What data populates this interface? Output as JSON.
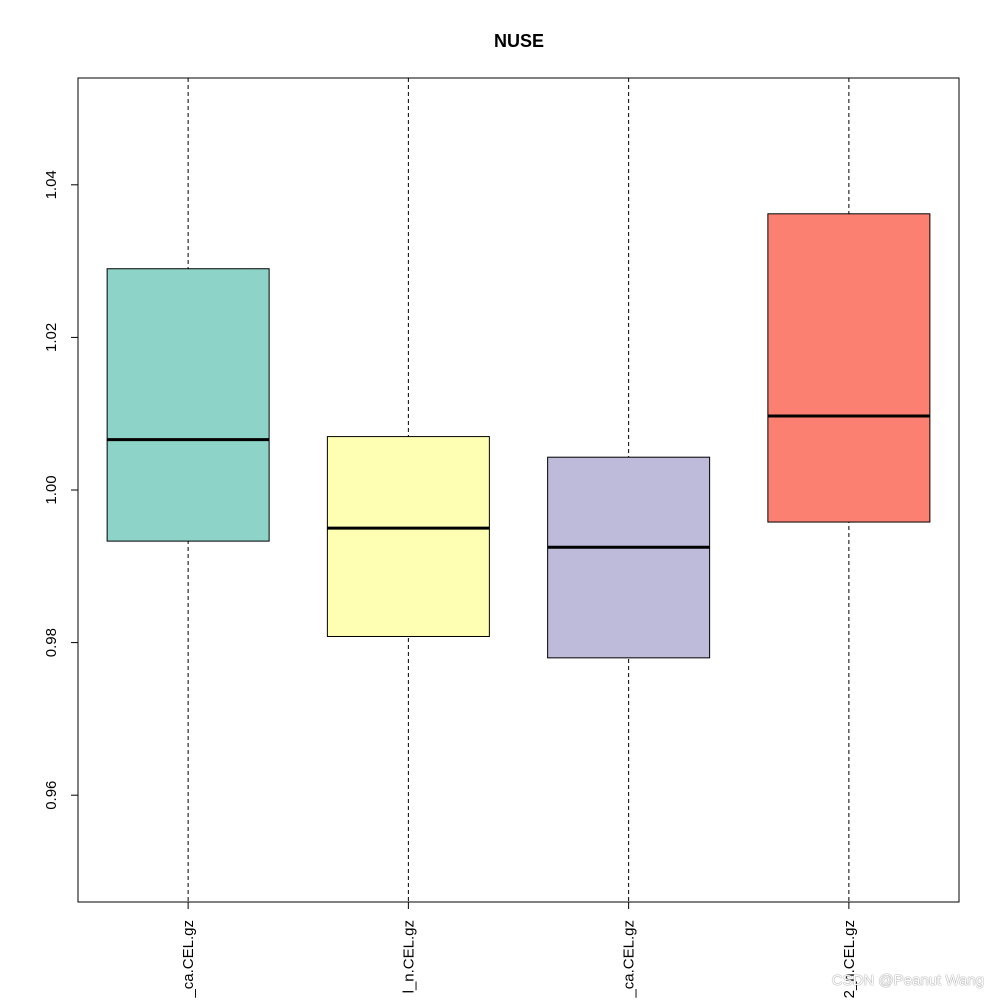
{
  "chart_data": {
    "type": "box",
    "title": "NUSE",
    "xlabel": "",
    "ylabel": "",
    "ylim": [
      0.946,
      1.054
    ],
    "yticks": [
      "0.96",
      "0.98",
      "1.00",
      "1.02",
      "1.04"
    ],
    "categories": [
      "_ca.CEL.gz",
      "l_n.CEL.gz",
      "_ca.CEL.gz",
      "2_n.CEL.gz"
    ],
    "boxes": [
      {
        "q1": 0.9933,
        "median": 1.0066,
        "q3": 1.029,
        "color": "#8DD3C7"
      },
      {
        "q1": 0.9808,
        "median": 0.995,
        "q3": 1.007,
        "color": "#FFFFB3"
      },
      {
        "q1": 0.978,
        "median": 0.9925,
        "q3": 1.0043,
        "color": "#BEBADA"
      },
      {
        "q1": 0.9958,
        "median": 1.0097,
        "q3": 1.0362,
        "color": "#FB8072"
      }
    ],
    "whiskers": "extend beyond plot range",
    "whisker_style": "dashed",
    "grid": false,
    "legend": "none"
  },
  "watermark": "CSDN @Peanut Wang"
}
